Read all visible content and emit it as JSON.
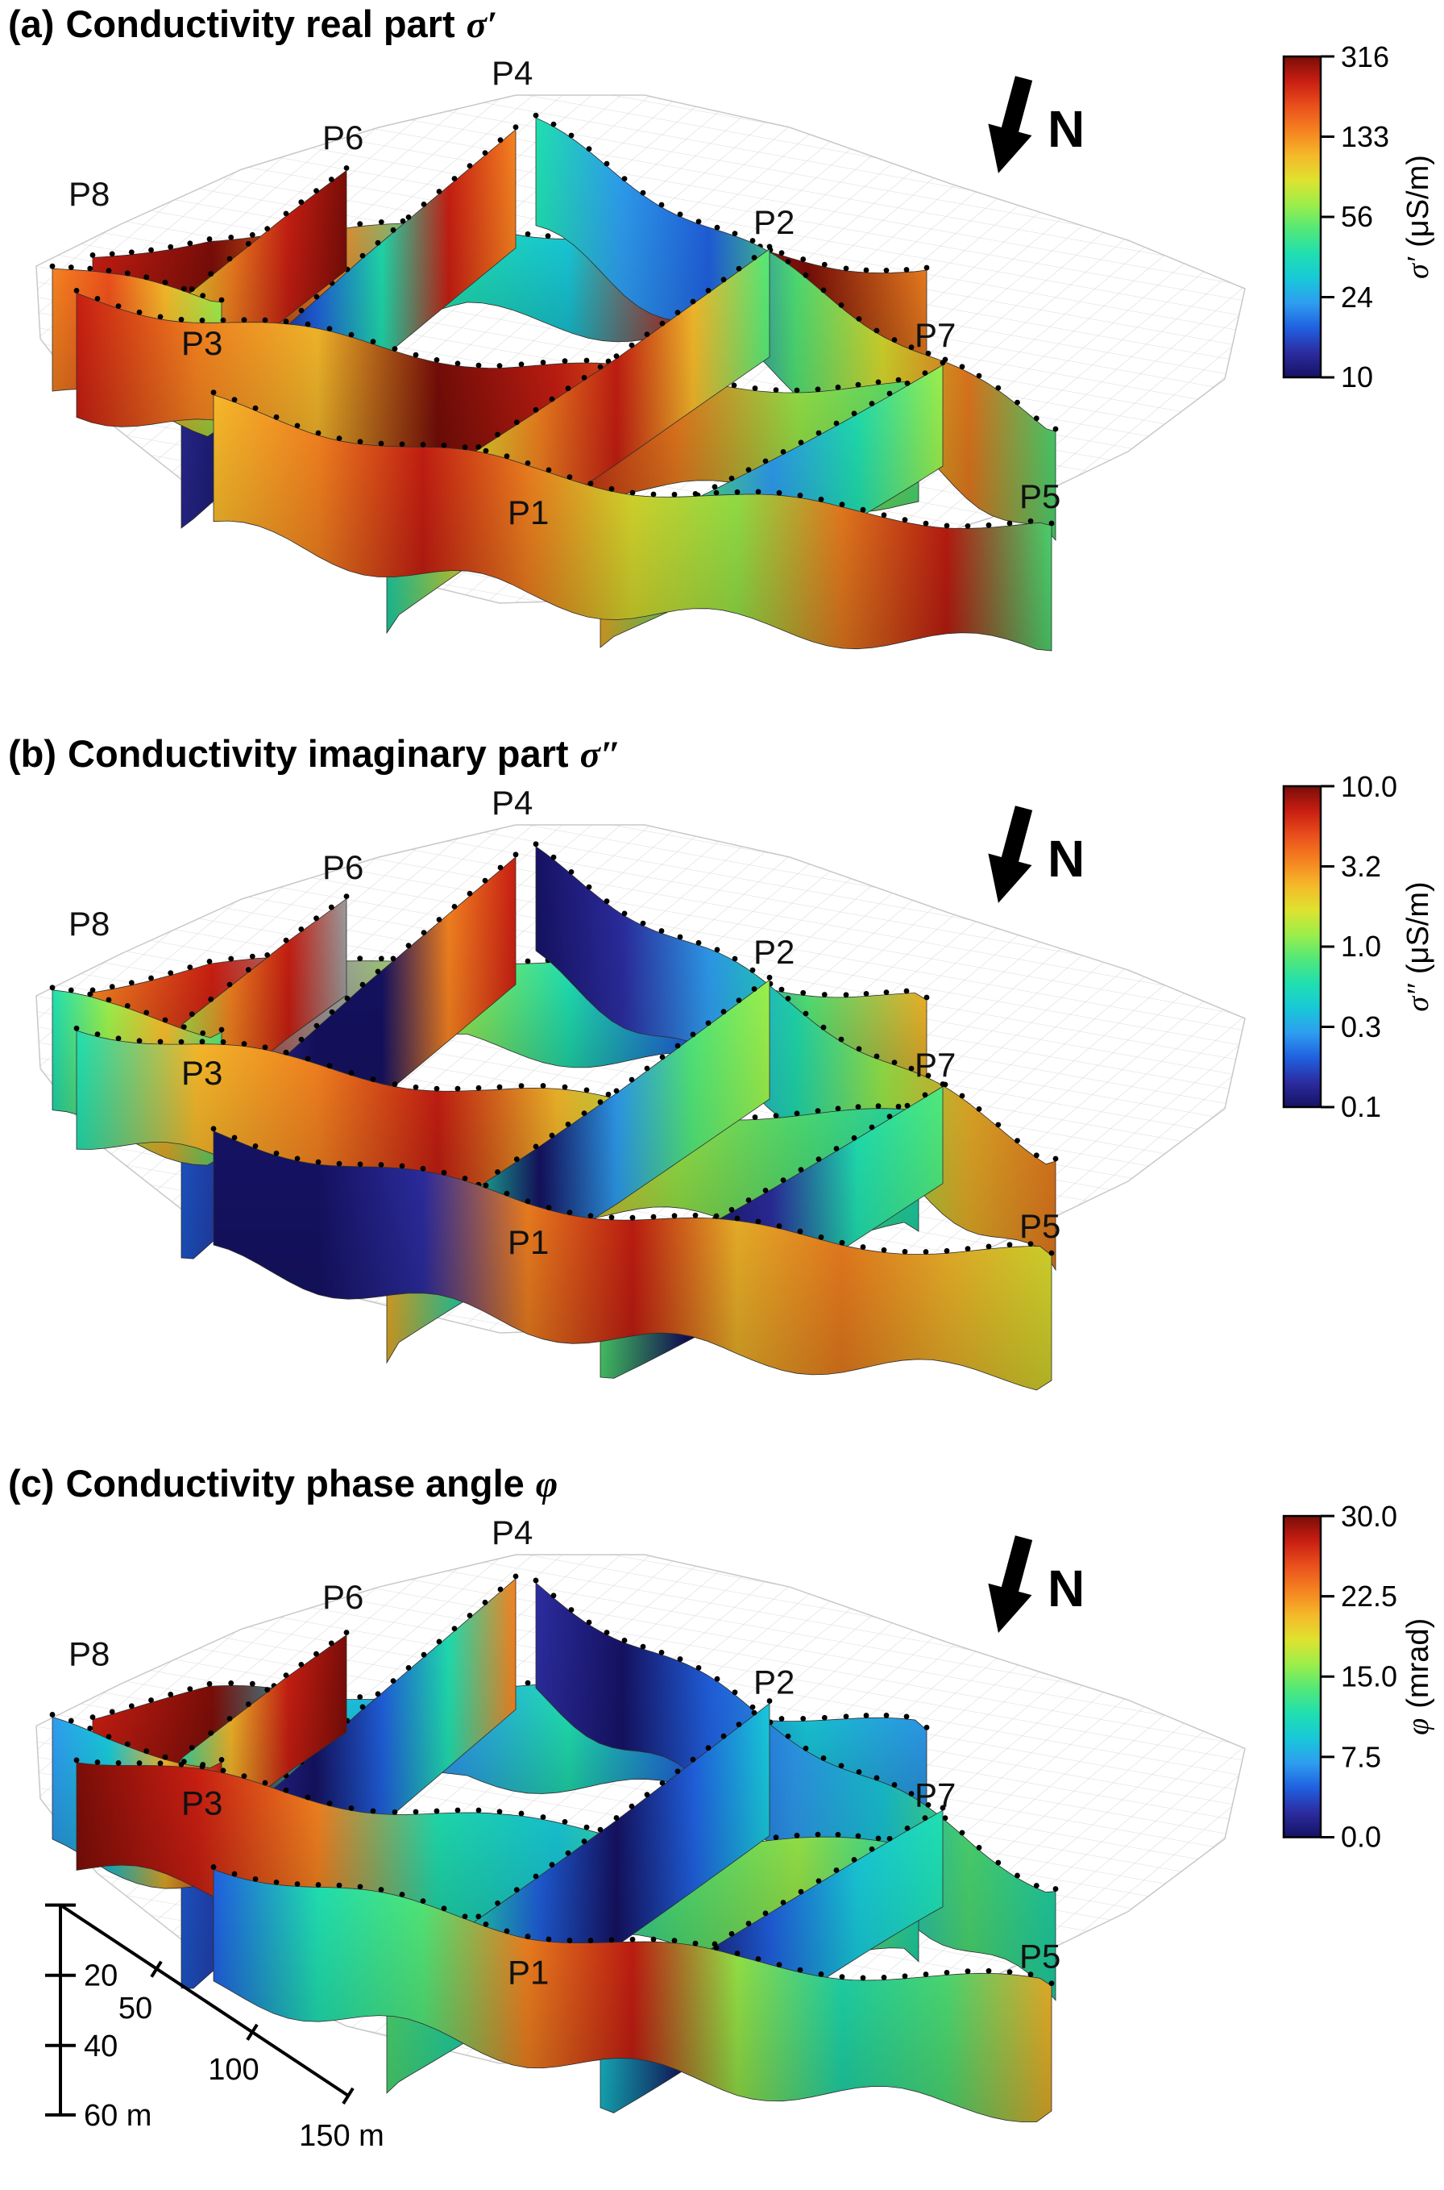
{
  "figure": {
    "type": "3-panel 3D fence-diagram geophysics figure",
    "background": "#ffffff"
  },
  "north_label": "N",
  "profiles": [
    {
      "label": "P8"
    },
    {
      "label": "P6"
    },
    {
      "label": "P4"
    },
    {
      "label": "P2"
    },
    {
      "label": "P3"
    },
    {
      "label": "P7"
    },
    {
      "label": "P1"
    },
    {
      "label": "P5"
    }
  ],
  "panels": [
    {
      "id": "a",
      "title_prefix": "(a)",
      "title_text": "Conductivity real part",
      "title_symbol": "σ′",
      "colorbar": {
        "symbol": "σ′",
        "unit": "(μS/m)",
        "ticks": [
          "316",
          "133",
          "56",
          "24",
          "10"
        ],
        "scale": "log"
      },
      "fence_colors": {
        "F1": [
          "red",
          "darkred",
          "orange",
          "teal",
          "cyan",
          "red",
          "darkred",
          "orange"
        ],
        "F2": [
          "orange",
          "red",
          "teal",
          "blue",
          "navy",
          "darkblue"
        ],
        "F7": [
          "teal",
          "skyblue",
          "blue",
          "green",
          "yellow",
          "orange",
          "green"
        ],
        "F9": [
          "darkred",
          "red",
          "orange",
          "yellow"
        ],
        "F8": [
          "orange",
          "redorange",
          "gold",
          "lime"
        ],
        "F6": [
          "red",
          "orange",
          "gold",
          "darkred",
          "red",
          "orange",
          "lime",
          "green"
        ],
        "F3": [
          "green",
          "gold",
          "red",
          "orange",
          "yellow",
          "teal"
        ],
        "F4": [
          "lime",
          "teal",
          "skyblue",
          "green",
          "gold"
        ],
        "F5": [
          "gold",
          "orange",
          "red",
          "orange",
          "yellow",
          "lime",
          "orange",
          "red",
          "green"
        ]
      }
    },
    {
      "id": "b",
      "title_prefix": "(b)",
      "title_text": "Conductivity imaginary part",
      "title_symbol": "σ″",
      "colorbar": {
        "symbol": "σ″",
        "unit": "(μS/m)",
        "ticks": [
          "10.0",
          "3.2",
          "1.0",
          "0.3",
          "0.1"
        ],
        "scale": "log"
      },
      "fence_colors": {
        "F1": [
          "orange",
          "red",
          "gray",
          "lime",
          "teal",
          "blue",
          "green",
          "gold"
        ],
        "F2": [
          "red",
          "orange",
          "navy",
          "navy",
          "darkblue",
          "blue"
        ],
        "F7": [
          "navy",
          "darkblue",
          "skyblue",
          "teal",
          "lime",
          "gold",
          "orange"
        ],
        "F9": [
          "gray",
          "red",
          "orange",
          "lime"
        ],
        "F8": [
          "teal",
          "lime",
          "gold",
          "green"
        ],
        "F6": [
          "teal",
          "gold",
          "orange",
          "red",
          "gold",
          "lime",
          "green",
          "teal"
        ],
        "F3": [
          "lime",
          "green",
          "skyblue",
          "navy",
          "teal",
          "gold"
        ],
        "F4": [
          "green",
          "teal",
          "darkblue",
          "navy",
          "green"
        ],
        "F5": [
          "navy",
          "navy",
          "darkblue",
          "orange",
          "red",
          "gold",
          "orange",
          "gold",
          "yellow"
        ]
      }
    },
    {
      "id": "c",
      "title_prefix": "(c)",
      "title_text": "Conductivity phase angle",
      "title_symbol": "φ",
      "colorbar": {
        "symbol": "φ",
        "unit": "(mrad)",
        "ticks": [
          "30.0",
          "22.5",
          "15.0",
          "7.5",
          "0.0"
        ],
        "scale": "linear"
      },
      "fence_colors": {
        "F1": [
          "red",
          "darkred",
          "cyan",
          "skyblue",
          "teal",
          "blue",
          "cyan",
          "skyblue"
        ],
        "F2": [
          "orange",
          "teal",
          "blue",
          "navy",
          "darkblue",
          "blue"
        ],
        "F7": [
          "darkblue",
          "navy",
          "blue",
          "skyblue",
          "cyan",
          "green",
          "teal"
        ],
        "F9": [
          "darkred",
          "red",
          "gold",
          "teal"
        ],
        "F8": [
          "skyblue",
          "cyan",
          "gold",
          "red"
        ],
        "F6": [
          "darkred",
          "red",
          "orange",
          "teal",
          "cyan",
          "green",
          "lime",
          "teal"
        ],
        "F3": [
          "cyan",
          "blue",
          "navy",
          "blue",
          "teal",
          "green"
        ],
        "F4": [
          "teal",
          "cyan",
          "blue",
          "navy",
          "cyan"
        ],
        "F5": [
          "blue",
          "teal",
          "green",
          "orange",
          "red",
          "lime",
          "teal",
          "green",
          "gold"
        ]
      }
    }
  ],
  "scalebar": {
    "vertical_ticks": [
      "20",
      "40",
      "60 m"
    ],
    "horizontal_ticks": [
      "50",
      "100",
      "150 m"
    ]
  },
  "colors": {
    "background": "#ffffff",
    "mesh_line": "#d9d9d9",
    "jet": [
      "#151263",
      "#2c2ca0",
      "#2060e0",
      "#2e9df0",
      "#18c8d8",
      "#20dfb0",
      "#52e878",
      "#9cee4a",
      "#dfe22f",
      "#f5b82a",
      "#f58220",
      "#ea4f1c",
      "#c81e12",
      "#7a0d08"
    ],
    "palette": {
      "navy": "#151263",
      "darkblue": "#2c2ca0",
      "blue": "#2060e0",
      "skyblue": "#2e9df0",
      "cyan": "#18c8d8",
      "teal": "#20dfb0",
      "green": "#52e878",
      "lime": "#9cee4a",
      "yellow": "#dfe22f",
      "gold": "#f5b82a",
      "orange": "#f58220",
      "redorange": "#ea4f1c",
      "red": "#c81e12",
      "darkred": "#7a0d08",
      "gray": "#9a9a9a"
    }
  },
  "chart_data": [
    {
      "type": "heatmap",
      "subtype": "3D fence diagram of inverted cross-sections draped under a gray terrain mesh",
      "title": "(a) Conductivity real part σ′",
      "variable": "σ′",
      "unit": "μS/m",
      "colormap": "jet",
      "colorbar_ticks": [
        316,
        133,
        56,
        24,
        10
      ],
      "value_range": [
        10,
        316
      ],
      "scale": "log",
      "profiles": [
        "P1",
        "P2",
        "P3",
        "P4",
        "P5",
        "P6",
        "P7",
        "P8"
      ],
      "north_arrow": true,
      "legend_position": "right colorbar"
    },
    {
      "type": "heatmap",
      "subtype": "3D fence diagram of inverted cross-sections draped under a gray terrain mesh",
      "title": "(b) Conductivity imaginary part σ″",
      "variable": "σ″",
      "unit": "μS/m",
      "colormap": "jet",
      "colorbar_ticks": [
        10.0,
        3.2,
        1.0,
        0.3,
        0.1
      ],
      "value_range": [
        0.1,
        10
      ],
      "scale": "log",
      "profiles": [
        "P1",
        "P2",
        "P3",
        "P4",
        "P5",
        "P6",
        "P7",
        "P8"
      ],
      "north_arrow": true,
      "legend_position": "right colorbar"
    },
    {
      "type": "heatmap",
      "subtype": "3D fence diagram of inverted cross-sections draped under a gray terrain mesh",
      "title": "(c) Conductivity phase angle φ",
      "variable": "φ",
      "unit": "mrad",
      "colormap": "jet",
      "colorbar_ticks": [
        30.0,
        22.5,
        15.0,
        7.5,
        0.0
      ],
      "value_range": [
        0,
        30
      ],
      "scale": "linear",
      "profiles": [
        "P1",
        "P2",
        "P3",
        "P4",
        "P5",
        "P6",
        "P7",
        "P8"
      ],
      "north_arrow": true,
      "legend_position": "right colorbar",
      "scale_bar": {
        "depth_ticks_m": [
          20,
          40,
          60
        ],
        "distance_ticks_m": [
          50,
          100,
          150
        ]
      }
    }
  ]
}
